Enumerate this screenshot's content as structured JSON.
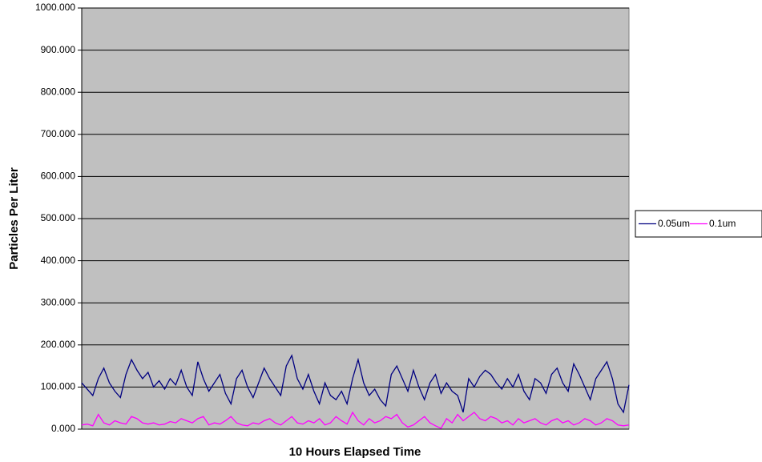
{
  "chart_data": {
    "type": "line",
    "ylabel": "Particles Per Liter",
    "xlabel": "10 Hours Elapsed Time",
    "ylim": [
      0,
      1000
    ],
    "yticks": [
      {
        "value": 0,
        "label": "0.000"
      },
      {
        "value": 100,
        "label": "100.000"
      },
      {
        "value": 200,
        "label": "200.000"
      },
      {
        "value": 300,
        "label": "300.000"
      },
      {
        "value": 400,
        "label": "400.000"
      },
      {
        "value": 500,
        "label": "500.000"
      },
      {
        "value": 600,
        "label": "600.000"
      },
      {
        "value": 700,
        "label": "700.000"
      },
      {
        "value": 800,
        "label": "800.000"
      },
      {
        "value": 900,
        "label": "900.000"
      },
      {
        "value": 1000,
        "label": "1000.000"
      }
    ],
    "grid": true,
    "legend": "right",
    "series": [
      {
        "name": "0.05um",
        "color": "#000080",
        "values": [
          110,
          95,
          80,
          120,
          145,
          110,
          90,
          75,
          130,
          165,
          140,
          120,
          135,
          100,
          115,
          95,
          120,
          105,
          140,
          100,
          80,
          160,
          120,
          90,
          110,
          130,
          85,
          60,
          120,
          140,
          100,
          75,
          110,
          145,
          120,
          100,
          80,
          150,
          175,
          120,
          95,
          130,
          90,
          60,
          110,
          80,
          70,
          90,
          60,
          120,
          165,
          110,
          80,
          95,
          70,
          55,
          130,
          150,
          120,
          90,
          140,
          100,
          70,
          110,
          130,
          85,
          110,
          90,
          80,
          40,
          120,
          100,
          125,
          140,
          130,
          110,
          95,
          120,
          100,
          130,
          90,
          70,
          120,
          110,
          85,
          130,
          145,
          110,
          90,
          155,
          130,
          100,
          70,
          120,
          140,
          160,
          120,
          60,
          40,
          105
        ]
      },
      {
        "name": "0.1um",
        "color": "#ff00ff",
        "values": [
          10,
          12,
          8,
          35,
          15,
          10,
          20,
          15,
          12,
          30,
          25,
          15,
          12,
          15,
          10,
          12,
          18,
          15,
          25,
          20,
          15,
          25,
          30,
          10,
          15,
          12,
          20,
          30,
          15,
          10,
          8,
          15,
          12,
          20,
          25,
          15,
          10,
          20,
          30,
          15,
          12,
          20,
          15,
          25,
          10,
          15,
          30,
          20,
          12,
          40,
          20,
          10,
          25,
          15,
          20,
          30,
          25,
          35,
          15,
          5,
          10,
          20,
          30,
          15,
          8,
          2,
          25,
          15,
          35,
          20,
          30,
          40,
          25,
          20,
          30,
          25,
          15,
          20,
          10,
          25,
          15,
          20,
          25,
          15,
          10,
          20,
          25,
          15,
          20,
          10,
          15,
          25,
          20,
          10,
          15,
          25,
          20,
          10,
          8,
          10
        ]
      }
    ]
  }
}
